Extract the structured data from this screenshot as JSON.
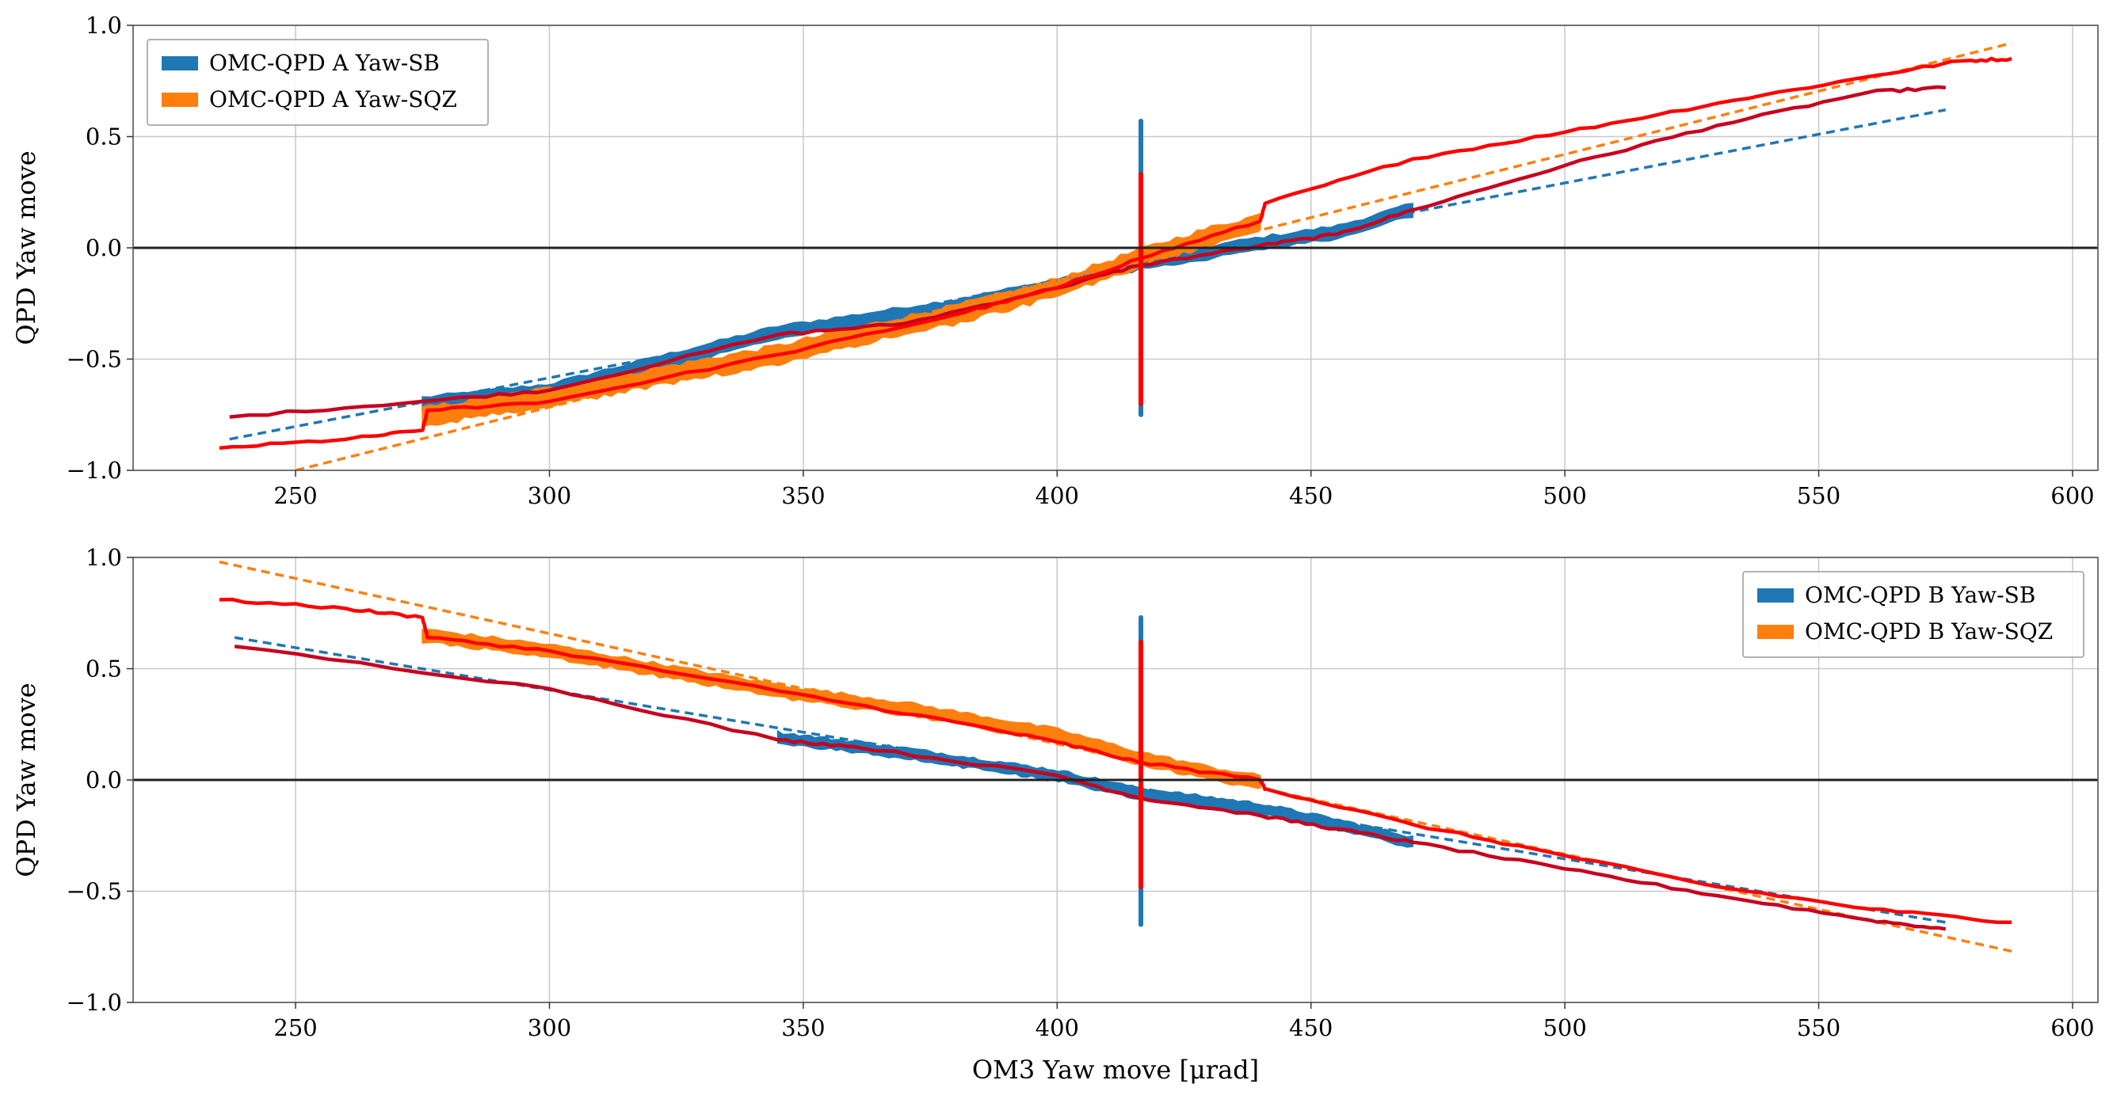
{
  "colors": {
    "blue": "#1f77b4",
    "orange": "#ff7f0e",
    "red": "#ff0000",
    "darkred": "#c8001e",
    "grid": "#c8c8c8",
    "zero_line": "#222222"
  },
  "chart_data": [
    {
      "type": "scatter",
      "panel": "top",
      "xlabel": "",
      "ylabel": "QPD Yaw move",
      "xlim": [
        218,
        605
      ],
      "ylim": [
        -1.0,
        1.0
      ],
      "xticks": [
        250,
        300,
        350,
        400,
        450,
        500,
        550,
        600
      ],
      "yticks": [
        -1.0,
        -0.5,
        0.0,
        0.5,
        1.0
      ],
      "xtick_labels": [
        "250",
        "300",
        "350",
        "400",
        "450",
        "500",
        "550",
        "600"
      ],
      "ytick_labels": [
        "−1.0",
        "−0.5",
        "0.0",
        "0.5",
        "1.0"
      ],
      "grid": true,
      "legend_position": "top-left",
      "legend": [
        "OMC-QPD A Yaw-SB",
        "OMC-QPD A Yaw-SQZ"
      ],
      "zero_line": 0.0,
      "series": [
        {
          "name": "OMC-QPD A Yaw-SB",
          "color": "blue",
          "kind": "band",
          "x": [
            275,
            300,
            345,
            360,
            380,
            400,
            416,
            430,
            440,
            455,
            470
          ],
          "y": [
            -0.7,
            -0.64,
            -0.38,
            -0.33,
            -0.26,
            -0.17,
            -0.07,
            -0.02,
            0.02,
            0.07,
            0.17
          ],
          "spread": 0.035
        },
        {
          "name": "OMC-QPD A Yaw-SQZ",
          "color": "orange",
          "kind": "band",
          "x": [
            275,
            300,
            345,
            360,
            380,
            400,
            416,
            430,
            440
          ],
          "y": [
            -0.76,
            -0.67,
            -0.48,
            -0.4,
            -0.3,
            -0.18,
            -0.05,
            0.05,
            0.11
          ],
          "spread": 0.05
        },
        {
          "name": "",
          "color": "blue",
          "kind": "fit",
          "x": [
            237,
            575
          ],
          "y": [
            -0.86,
            0.62
          ]
        },
        {
          "name": "",
          "color": "orange",
          "kind": "fit",
          "x": [
            250,
            588
          ],
          "y": [
            -1.0,
            0.92
          ]
        },
        {
          "name": "",
          "color": "darkred",
          "kind": "trace",
          "x": [
            237,
            275,
            300,
            345,
            370,
            400,
            416,
            440,
            455,
            470,
            500,
            530,
            560,
            575
          ],
          "y": [
            -0.76,
            -0.69,
            -0.64,
            -0.39,
            -0.34,
            -0.18,
            -0.08,
            0.01,
            0.06,
            0.17,
            0.37,
            0.55,
            0.7,
            0.72
          ]
        },
        {
          "name": "",
          "color": "red",
          "kind": "trace",
          "x": [
            235,
            260,
            275,
            276,
            300,
            345,
            380,
            400,
            416,
            440,
            441,
            470,
            500,
            530,
            560,
            578,
            588
          ],
          "y": [
            -0.9,
            -0.86,
            -0.82,
            -0.73,
            -0.69,
            -0.48,
            -0.3,
            -0.18,
            -0.05,
            0.12,
            0.2,
            0.4,
            0.52,
            0.65,
            0.77,
            0.84,
            0.85
          ]
        },
        {
          "name": "",
          "color": "blue",
          "kind": "vline",
          "x": [
            416.5,
            416.5
          ],
          "y": [
            -0.75,
            0.57
          ]
        },
        {
          "name": "",
          "color": "red",
          "kind": "vline",
          "x": [
            416.5,
            416.5
          ],
          "y": [
            -0.7,
            0.33
          ]
        }
      ]
    },
    {
      "type": "scatter",
      "panel": "bottom",
      "xlabel": "OM3 Yaw move [μrad]",
      "ylabel": "QPD Yaw move",
      "xlim": [
        218,
        605
      ],
      "ylim": [
        -1.0,
        1.0
      ],
      "xticks": [
        250,
        300,
        350,
        400,
        450,
        500,
        550,
        600
      ],
      "yticks": [
        -1.0,
        -0.5,
        0.0,
        0.5,
        1.0
      ],
      "xtick_labels": [
        "250",
        "300",
        "350",
        "400",
        "450",
        "500",
        "550",
        "600"
      ],
      "ytick_labels": [
        "−1.0",
        "−0.5",
        "0.0",
        "0.5",
        "1.0"
      ],
      "grid": true,
      "legend_position": "top-right",
      "legend": [
        "OMC-QPD B Yaw-SB",
        "OMC-QPD B Yaw-SQZ"
      ],
      "zero_line": 0.0,
      "series": [
        {
          "name": "OMC-QPD B Yaw-SB",
          "color": "blue",
          "kind": "band",
          "x": [
            345,
            370,
            400,
            416,
            440,
            455,
            470
          ],
          "y": [
            0.19,
            0.12,
            0.02,
            -0.06,
            -0.13,
            -0.2,
            -0.28
          ],
          "spread": 0.03
        },
        {
          "name": "OMC-QPD B Yaw-SQZ",
          "color": "orange",
          "kind": "band",
          "x": [
            275,
            300,
            345,
            370,
            400,
            416,
            430,
            440
          ],
          "y": [
            0.65,
            0.58,
            0.4,
            0.32,
            0.2,
            0.1,
            0.03,
            -0.01
          ],
          "spread": 0.035
        },
        {
          "name": "",
          "color": "orange",
          "kind": "fit",
          "x": [
            235,
            588
          ],
          "y": [
            0.98,
            -0.77
          ]
        },
        {
          "name": "",
          "color": "blue",
          "kind": "fit",
          "x": [
            238,
            575
          ],
          "y": [
            0.64,
            -0.64
          ]
        },
        {
          "name": "",
          "color": "darkred",
          "kind": "trace",
          "x": [
            238,
            300,
            345,
            360,
            400,
            416,
            440,
            455,
            470,
            500,
            530,
            560,
            575
          ],
          "y": [
            0.6,
            0.41,
            0.18,
            0.15,
            0.02,
            -0.08,
            -0.16,
            -0.22,
            -0.28,
            -0.4,
            -0.52,
            -0.63,
            -0.67
          ]
        },
        {
          "name": "",
          "color": "red",
          "kind": "trace",
          "x": [
            235,
            260,
            275,
            276,
            300,
            345,
            380,
            400,
            416,
            440,
            441,
            470,
            500,
            530,
            560,
            588
          ],
          "y": [
            0.81,
            0.77,
            0.73,
            0.64,
            0.58,
            0.4,
            0.26,
            0.17,
            0.08,
            0.0,
            -0.04,
            -0.2,
            -0.34,
            -0.48,
            -0.58,
            -0.64
          ]
        },
        {
          "name": "",
          "color": "blue",
          "kind": "vline",
          "x": [
            416.5,
            416.5
          ],
          "y": [
            -0.65,
            0.73
          ]
        },
        {
          "name": "",
          "color": "red",
          "kind": "vline",
          "x": [
            416.5,
            416.5
          ],
          "y": [
            -0.48,
            0.62
          ]
        }
      ]
    }
  ]
}
